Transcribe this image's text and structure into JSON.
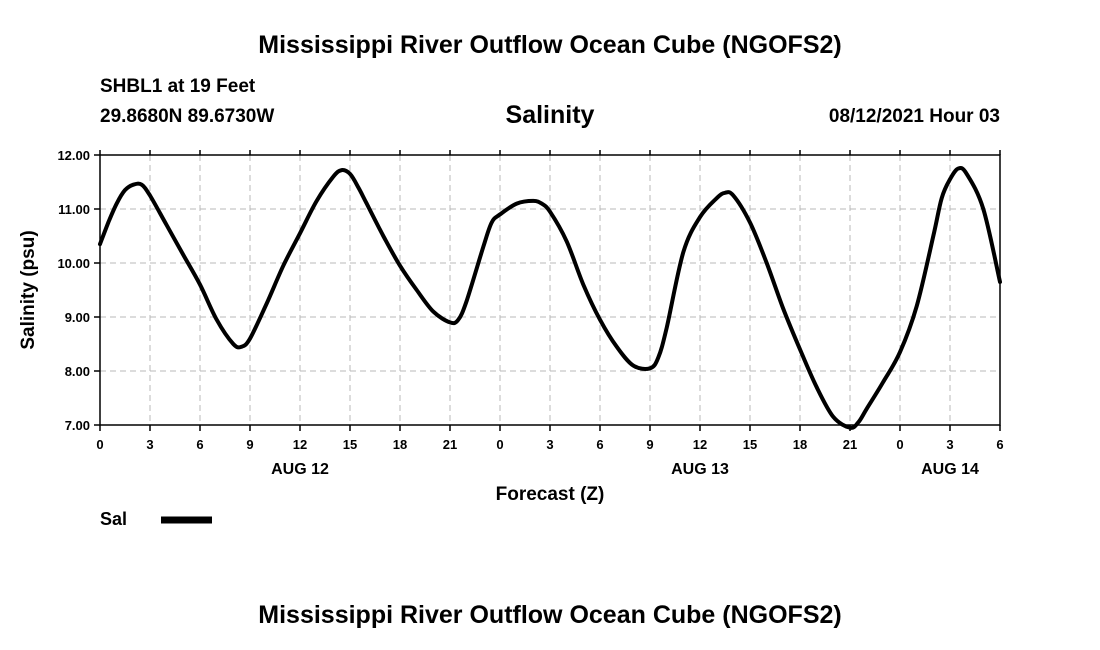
{
  "header": {
    "title_top": "Mississippi River Outflow Ocean Cube (NGOFS2)",
    "station": "SHBL1 at 19 Feet",
    "coords": "29.8680N  89.6730W",
    "variable": "Salinity",
    "datetime": "08/12/2021 Hour 03",
    "title_bottom": "Mississippi River Outflow Ocean Cube (NGOFS2)"
  },
  "legend": {
    "label": "Sal"
  },
  "chart_data": {
    "type": "line",
    "title": "Salinity",
    "xlabel": "Forecast (Z)",
    "ylabel": "Salinity (psu)",
    "xlim": [
      0,
      54
    ],
    "ylim": [
      7.0,
      12.0
    ],
    "grid": true,
    "y_ticks": [
      {
        "value": 7.0,
        "label": "7.00"
      },
      {
        "value": 8.0,
        "label": "8.00"
      },
      {
        "value": 9.0,
        "label": "9.00"
      },
      {
        "value": 10.0,
        "label": "10.00"
      },
      {
        "value": 11.0,
        "label": "11.00"
      },
      {
        "value": 12.0,
        "label": "12.00"
      }
    ],
    "x_ticks": [
      {
        "value": 0,
        "label": "0"
      },
      {
        "value": 3,
        "label": "3"
      },
      {
        "value": 6,
        "label": "6"
      },
      {
        "value": 9,
        "label": "9"
      },
      {
        "value": 12,
        "label": "12"
      },
      {
        "value": 15,
        "label": "15"
      },
      {
        "value": 18,
        "label": "18"
      },
      {
        "value": 21,
        "label": "21"
      },
      {
        "value": 24,
        "label": "0"
      },
      {
        "value": 27,
        "label": "3"
      },
      {
        "value": 30,
        "label": "6"
      },
      {
        "value": 33,
        "label": "9"
      },
      {
        "value": 36,
        "label": "12"
      },
      {
        "value": 39,
        "label": "15"
      },
      {
        "value": 42,
        "label": "18"
      },
      {
        "value": 45,
        "label": "21"
      },
      {
        "value": 48,
        "label": "0"
      },
      {
        "value": 51,
        "label": "3"
      },
      {
        "value": 54,
        "label": "6"
      }
    ],
    "date_labels": [
      {
        "value": 12,
        "label": "AUG 12"
      },
      {
        "value": 36,
        "label": "AUG 13"
      },
      {
        "value": 51,
        "label": "AUG 14"
      }
    ],
    "series": [
      {
        "name": "Sal",
        "color": "#000000",
        "x": [
          0,
          0.5,
          1,
          1.5,
          2,
          2.5,
          3,
          4,
          5,
          6,
          7,
          8,
          8.5,
          9,
          10,
          11,
          12,
          13,
          14,
          14.5,
          15,
          15.5,
          16,
          17,
          18,
          19,
          20,
          21,
          21.5,
          22,
          23,
          23.5,
          24,
          25,
          26,
          26.5,
          27,
          28,
          29,
          30,
          31,
          32,
          33,
          33.5,
          34,
          35,
          36,
          37,
          37.5,
          38,
          39,
          40,
          41,
          42,
          43,
          44,
          45,
          45.5,
          46,
          47,
          48,
          49,
          50,
          50.5,
          51,
          51.5,
          52,
          53,
          54
        ],
        "y": [
          10.35,
          10.75,
          11.1,
          11.35,
          11.45,
          11.45,
          11.25,
          10.7,
          10.15,
          9.6,
          8.95,
          8.5,
          8.45,
          8.6,
          9.25,
          9.95,
          10.55,
          11.15,
          11.6,
          11.72,
          11.65,
          11.4,
          11.1,
          10.5,
          9.95,
          9.5,
          9.1,
          8.9,
          8.95,
          9.3,
          10.3,
          10.75,
          10.9,
          11.1,
          11.15,
          11.1,
          10.95,
          10.4,
          9.6,
          8.95,
          8.45,
          8.1,
          8.05,
          8.25,
          8.8,
          10.2,
          10.85,
          11.2,
          11.3,
          11.25,
          10.75,
          10.0,
          9.15,
          8.4,
          7.7,
          7.15,
          6.95,
          7.05,
          7.3,
          7.8,
          8.35,
          9.2,
          10.5,
          11.2,
          11.55,
          11.75,
          11.65,
          11.0,
          9.65
        ]
      }
    ]
  }
}
